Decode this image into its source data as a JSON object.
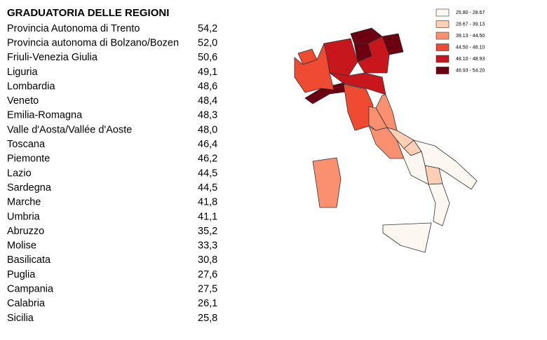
{
  "title": "GRADUATORIA DELLE REGIONI",
  "rows": [
    {
      "name": "Provincia Autonoma di Trento",
      "value": 54.2,
      "label": "54,2"
    },
    {
      "name": "Provincia autonoma di Bolzano/Bozen",
      "value": 52.0,
      "label": "52,0"
    },
    {
      "name": "Friuli-Venezia Giulia",
      "value": 50.6,
      "label": "50,6"
    },
    {
      "name": "Liguria",
      "value": 49.1,
      "label": "49,1"
    },
    {
      "name": "Lombardia",
      "value": 48.6,
      "label": "48,6"
    },
    {
      "name": "Veneto",
      "value": 48.4,
      "label": "48,4"
    },
    {
      "name": "Emilia-Romagna",
      "value": 48.3,
      "label": "48,3"
    },
    {
      "name": "Valle d'Aosta/Vallée d'Aoste",
      "value": 48.0,
      "label": "48,0"
    },
    {
      "name": "Toscana",
      "value": 46.4,
      "label": "46,4"
    },
    {
      "name": "Piemonte",
      "value": 46.2,
      "label": "46,2"
    },
    {
      "name": "Lazio",
      "value": 44.5,
      "label": "44,5"
    },
    {
      "name": "Sardegna",
      "value": 44.5,
      "label": "44,5"
    },
    {
      "name": "Marche",
      "value": 41.8,
      "label": "41,8"
    },
    {
      "name": "Umbria",
      "value": 41.1,
      "label": "41,1"
    },
    {
      "name": "Abruzzo",
      "value": 35.2,
      "label": "35,2"
    },
    {
      "name": "Molise",
      "value": 33.3,
      "label": "33,3"
    },
    {
      "name": "Basilicata",
      "value": 30.8,
      "label": "30,8"
    },
    {
      "name": "Puglia",
      "value": 27.6,
      "label": "27,6"
    },
    {
      "name": "Campania",
      "value": 27.5,
      "label": "27,5"
    },
    {
      "name": "Calabria",
      "value": 26.1,
      "label": "26,1"
    },
    {
      "name": "Sicilia",
      "value": 25.8,
      "label": "25,8"
    }
  ],
  "legend": [
    {
      "from": 25.8,
      "to": 28.67,
      "label": "25.80 - 28.67",
      "color": "#fdf7f1"
    },
    {
      "from": 28.67,
      "to": 39.13,
      "label": "28.67 - 39.13",
      "color": "#fdd0b5"
    },
    {
      "from": 39.13,
      "to": 44.5,
      "label": "39.13 - 44.50",
      "color": "#fb9070"
    },
    {
      "from": 44.5,
      "to": 48.1,
      "label": "44.50 - 48.10",
      "color": "#ef4a32"
    },
    {
      "from": 48.1,
      "to": 48.93,
      "label": "48.10 - 48.93",
      "color": "#c8161d"
    },
    {
      "from": 48.93,
      "to": 54.2,
      "label": "48.93 - 54.20",
      "color": "#6b0010"
    }
  ]
}
